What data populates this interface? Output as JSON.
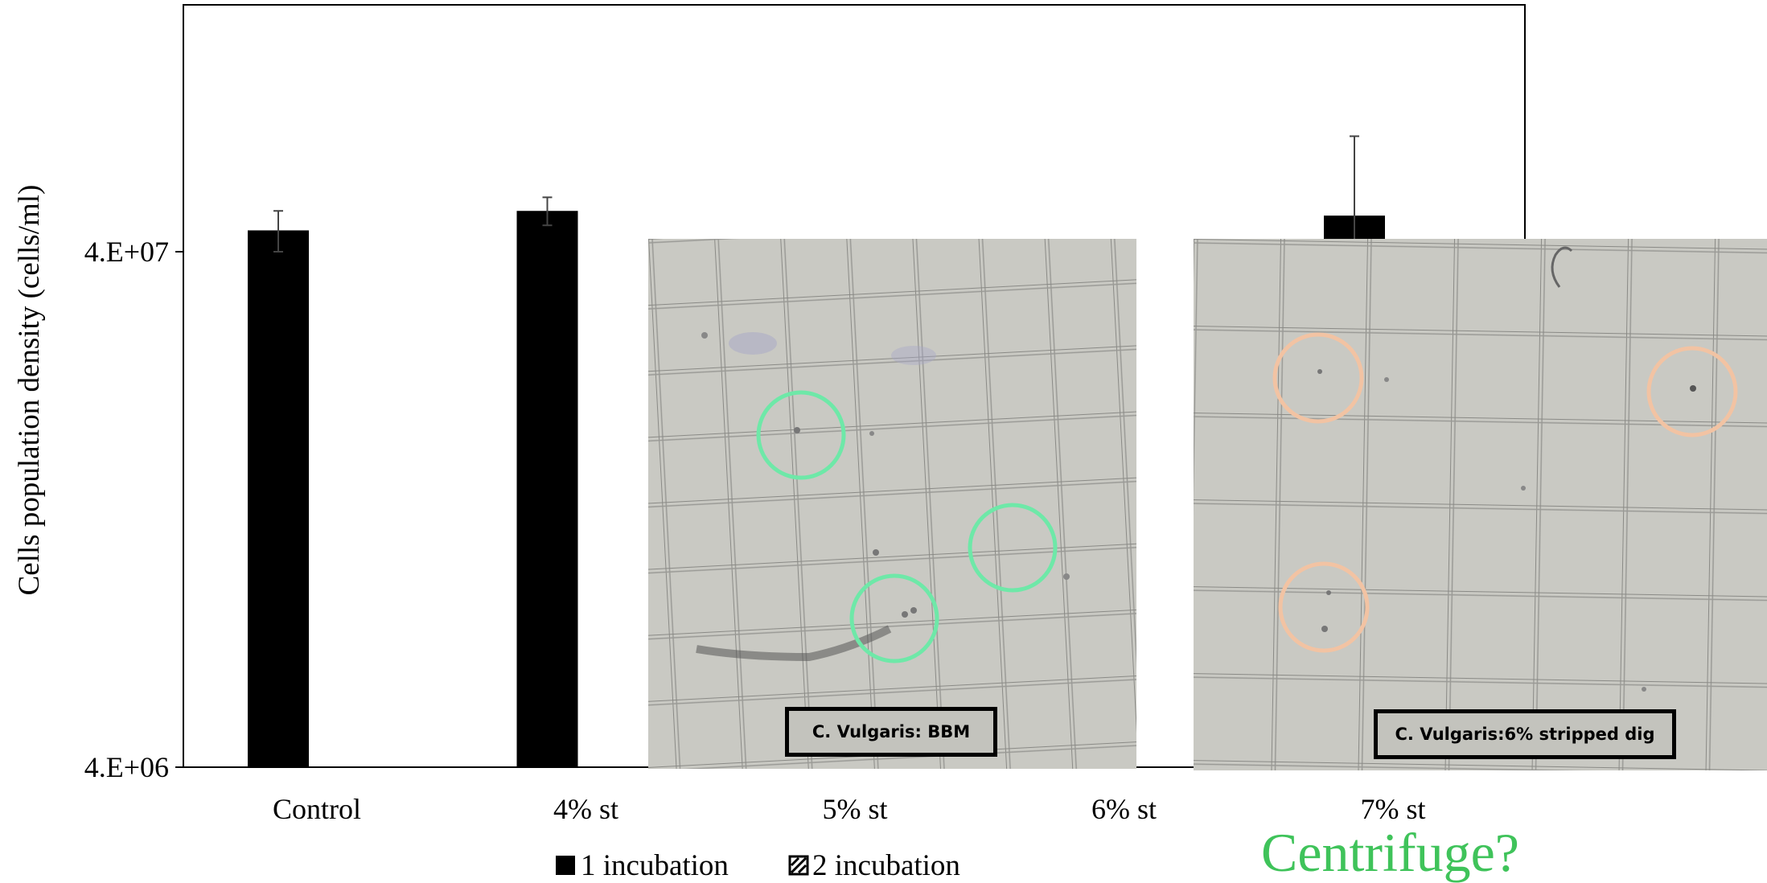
{
  "chart_data": {
    "type": "bar",
    "ylabel": "Cells population density (cells/ml)",
    "yscale": "log",
    "ylim": [
      4000000,
      400000000
    ],
    "ytick_values": [
      4000000,
      40000000
    ],
    "ytick_labels": [
      "4.E+06",
      "4.E+07"
    ],
    "categories": [
      "Control",
      "4% st",
      "5% st",
      "6% st",
      "7% st"
    ],
    "series": [
      {
        "name": "1 incubation",
        "values": [
          44000000,
          48000000,
          null,
          null,
          47000000
        ],
        "errors": [
          4000000,
          3000000,
          null,
          null,
          20000000
        ],
        "color": "#000000",
        "pattern": "solid"
      },
      {
        "name": "2 incubation",
        "values": [
          null,
          null,
          null,
          null,
          null
        ],
        "color": "#000000",
        "pattern": "hatched"
      }
    ],
    "legend_position": "bottom"
  },
  "insets": [
    {
      "caption": "C. Vulgaris: BBM",
      "marker_color": "#6ee8a8"
    },
    {
      "caption": "C. Vulgaris:6% stripped dig",
      "marker_color": "#f2c3a3"
    }
  ],
  "annotation": {
    "text": "Centrifuge?",
    "color": "#3fc35a"
  }
}
